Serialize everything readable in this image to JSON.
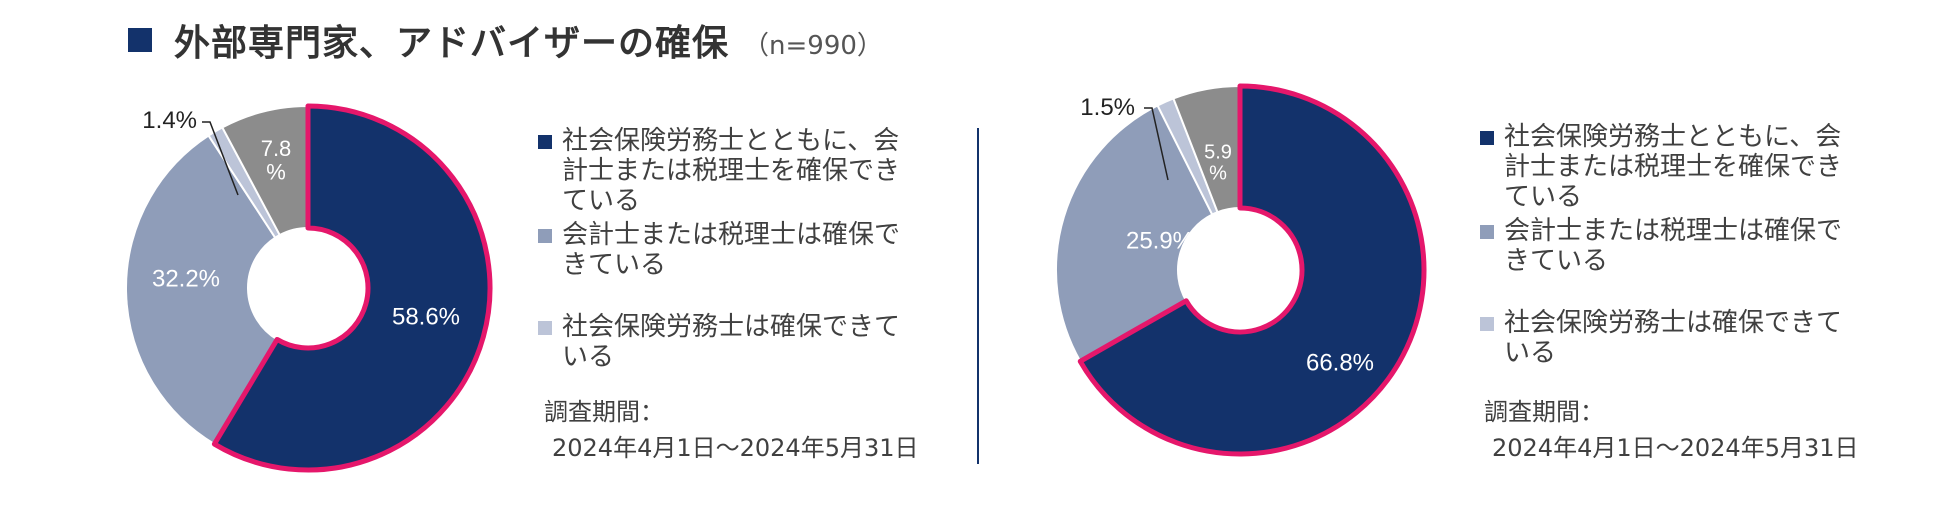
{
  "title": {
    "text": "外部専門家、アドバイザーの確保",
    "sample": "（n=990）"
  },
  "colors": {
    "navy": "#13326b",
    "light_blue_gray": "#8f9db9",
    "pale_blue_gray": "#bcc4d8",
    "gray": "#8c8c8c",
    "highlight_outline": "#e5176b"
  },
  "chart_data": [
    {
      "type": "donut",
      "slices": [
        {
          "label": "社会保険労務士とともに、会計士または税理士を確保できている",
          "value": 58.6,
          "display": "58.6%",
          "color": "#13326b",
          "highlighted": true
        },
        {
          "label": "会計士または税理士は確保できている",
          "value": 32.2,
          "display": "32.2%",
          "color": "#8f9db9",
          "highlighted": false
        },
        {
          "label": "社会保険労務士は確保できている",
          "value": 1.4,
          "display": "1.4%",
          "color": "#bcc4d8",
          "highlighted": false
        },
        {
          "label": "",
          "value": 7.8,
          "display": "7.8\n%",
          "color": "#8c8c8c",
          "highlighted": false
        }
      ]
    },
    {
      "type": "donut",
      "slices": [
        {
          "label": "社会保険労務士とともに、会計士または税理士を確保できている",
          "value": 66.8,
          "display": "66.8%",
          "color": "#13326b",
          "highlighted": true
        },
        {
          "label": "会計士または税理士は確保できている",
          "value": 25.9,
          "display": "25.9%",
          "color": "#8f9db9",
          "highlighted": false
        },
        {
          "label": "社会保険労務士は確保できている",
          "value": 1.5,
          "display": "1.5%",
          "color": "#bcc4d8",
          "highlighted": false
        },
        {
          "label": "",
          "value": 5.9,
          "display": "5.9\n%",
          "color": "#8c8c8c",
          "highlighted": false
        }
      ]
    }
  ],
  "legend": [
    {
      "text": "社会保険労務士とともに、会計士または税理士を確保できている",
      "color": "#13326b"
    },
    {
      "text": "会計士または税理士は確保できている",
      "color": "#8f9db9"
    },
    {
      "text": "社会保険労務士は確保できている",
      "color": "#bcc4d8"
    }
  ],
  "period": {
    "label": "調査期間：",
    "dates": "2024年4月1日～2024年5月31日"
  }
}
